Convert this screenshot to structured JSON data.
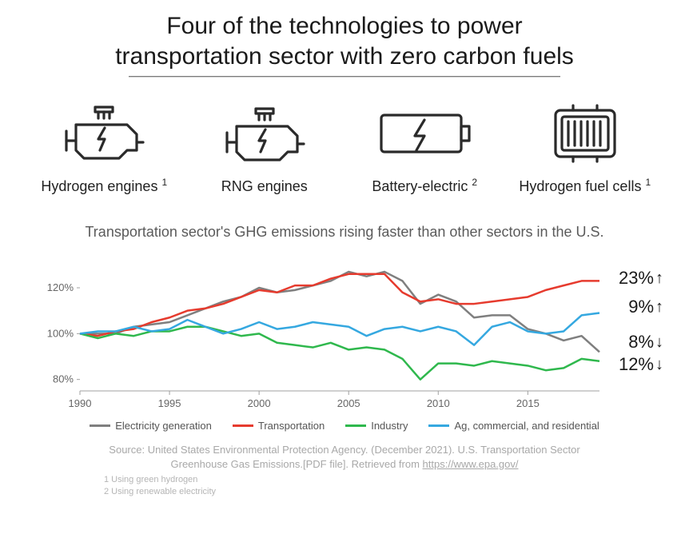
{
  "title_line1": "Four of the technologies to power",
  "title_line2": "transportation sector with zero carbon fuels",
  "technologies": [
    {
      "label": "Hydrogen engines",
      "superscript": "1",
      "icon": "engine-bolt"
    },
    {
      "label": "RNG engines",
      "superscript": "",
      "icon": "engine-bolt"
    },
    {
      "label": "Battery-electric",
      "superscript": "2",
      "icon": "battery-bolt"
    },
    {
      "label": "Hydrogen fuel cells",
      "superscript": "1",
      "icon": "fuel-cell"
    }
  ],
  "chart": {
    "title": "Transportation sector's GHG emissions rising faster than other sectors in the U.S.",
    "type": "line",
    "background_color": "#ffffff",
    "grid_color": "#e0e0e0",
    "axis_color": "#a0a0a0",
    "axis_font_size": 13,
    "x_ticks": [
      1990,
      1995,
      2000,
      2005,
      2010,
      2015
    ],
    "x_range": [
      1990,
      2019
    ],
    "y_ticks": [
      80,
      100,
      120
    ],
    "y_tick_suffix": "%",
    "y_range": [
      75,
      135
    ],
    "line_width": 2.5,
    "series": [
      {
        "name": "Electricity generation",
        "color": "#7f7f7f",
        "values": [
          [
            1990,
            100
          ],
          [
            1991,
            100
          ],
          [
            1992,
            100
          ],
          [
            1993,
            103
          ],
          [
            1994,
            104
          ],
          [
            1995,
            105
          ],
          [
            1996,
            108
          ],
          [
            1997,
            111
          ],
          [
            1998,
            114
          ],
          [
            1999,
            116
          ],
          [
            2000,
            120
          ],
          [
            2001,
            118
          ],
          [
            2002,
            119
          ],
          [
            2003,
            121
          ],
          [
            2004,
            123
          ],
          [
            2005,
            127
          ],
          [
            2006,
            125
          ],
          [
            2007,
            127
          ],
          [
            2008,
            123
          ],
          [
            2009,
            113
          ],
          [
            2010,
            117
          ],
          [
            2011,
            114
          ],
          [
            2012,
            107
          ],
          [
            2013,
            108
          ],
          [
            2014,
            108
          ],
          [
            2015,
            102
          ],
          [
            2016,
            100
          ],
          [
            2017,
            97
          ],
          [
            2018,
            99
          ],
          [
            2019,
            92
          ]
        ],
        "end_label": "8%",
        "end_direction": "down"
      },
      {
        "name": "Transportation",
        "color": "#e63b2e",
        "values": [
          [
            1990,
            100
          ],
          [
            1991,
            99
          ],
          [
            1992,
            101
          ],
          [
            1993,
            102
          ],
          [
            1994,
            105
          ],
          [
            1995,
            107
          ],
          [
            1996,
            110
          ],
          [
            1997,
            111
          ],
          [
            1998,
            113
          ],
          [
            1999,
            116
          ],
          [
            2000,
            119
          ],
          [
            2001,
            118
          ],
          [
            2002,
            121
          ],
          [
            2003,
            121
          ],
          [
            2004,
            124
          ],
          [
            2005,
            126
          ],
          [
            2006,
            126
          ],
          [
            2007,
            126
          ],
          [
            2008,
            118
          ],
          [
            2009,
            114
          ],
          [
            2010,
            115
          ],
          [
            2011,
            113
          ],
          [
            2012,
            113
          ],
          [
            2013,
            114
          ],
          [
            2014,
            115
          ],
          [
            2015,
            116
          ],
          [
            2016,
            119
          ],
          [
            2017,
            121
          ],
          [
            2018,
            123
          ],
          [
            2019,
            123
          ]
        ],
        "end_label": "23%",
        "end_direction": "up"
      },
      {
        "name": "Industry",
        "color": "#2fb84d",
        "values": [
          [
            1990,
            100
          ],
          [
            1991,
            98
          ],
          [
            1992,
            100
          ],
          [
            1993,
            99
          ],
          [
            1994,
            101
          ],
          [
            1995,
            101
          ],
          [
            1996,
            103
          ],
          [
            1997,
            103
          ],
          [
            1998,
            101
          ],
          [
            1999,
            99
          ],
          [
            2000,
            100
          ],
          [
            2001,
            96
          ],
          [
            2002,
            95
          ],
          [
            2003,
            94
          ],
          [
            2004,
            96
          ],
          [
            2005,
            93
          ],
          [
            2006,
            94
          ],
          [
            2007,
            93
          ],
          [
            2008,
            89
          ],
          [
            2009,
            80
          ],
          [
            2010,
            87
          ],
          [
            2011,
            87
          ],
          [
            2012,
            86
          ],
          [
            2013,
            88
          ],
          [
            2014,
            87
          ],
          [
            2015,
            86
          ],
          [
            2016,
            84
          ],
          [
            2017,
            85
          ],
          [
            2018,
            89
          ],
          [
            2019,
            88
          ]
        ],
        "end_label": "12%",
        "end_direction": "down"
      },
      {
        "name": "Ag, commercial, and residential",
        "color": "#35a8e0",
        "values": [
          [
            1990,
            100
          ],
          [
            1991,
            101
          ],
          [
            1992,
            101
          ],
          [
            1993,
            103
          ],
          [
            1994,
            101
          ],
          [
            1995,
            102
          ],
          [
            1996,
            106
          ],
          [
            1997,
            103
          ],
          [
            1998,
            100
          ],
          [
            1999,
            102
          ],
          [
            2000,
            105
          ],
          [
            2001,
            102
          ],
          [
            2002,
            103
          ],
          [
            2003,
            105
          ],
          [
            2004,
            104
          ],
          [
            2005,
            103
          ],
          [
            2006,
            99
          ],
          [
            2007,
            102
          ],
          [
            2008,
            103
          ],
          [
            2009,
            101
          ],
          [
            2010,
            103
          ],
          [
            2011,
            101
          ],
          [
            2012,
            95
          ],
          [
            2013,
            103
          ],
          [
            2014,
            105
          ],
          [
            2015,
            101
          ],
          [
            2016,
            100
          ],
          [
            2017,
            101
          ],
          [
            2018,
            108
          ],
          [
            2019,
            109
          ]
        ],
        "end_label": "9%",
        "end_direction": "up"
      }
    ]
  },
  "source_text": "Source: United States Environmental Protection Agency. (December 2021). U.S. Transportation Sector Greenhouse Gas Emissions.[PDF file]. Retrieved from ",
  "source_link_text": "https://www.epa.gov/",
  "footnote1": "1 Using green hydrogen",
  "footnote2": "2 Using renewable electricity"
}
